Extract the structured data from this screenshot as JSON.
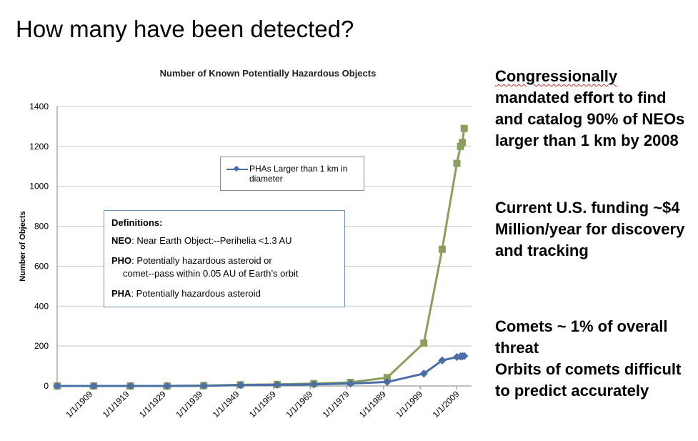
{
  "slide": {
    "title": "How many have been detected?"
  },
  "chart_data": {
    "type": "line",
    "title": "Number of Known Potentially Hazardous Objects",
    "ylabel": "Number of Objects",
    "xlabel": "",
    "ylim": [
      0,
      1400
    ],
    "yticks": [
      "0",
      "200",
      "400",
      "600",
      "800",
      "1000",
      "1200",
      "1400"
    ],
    "xlim": [
      "1900-01-01",
      "2013-01-01"
    ],
    "xticks": [
      "1/1/1909",
      "1/1/1919",
      "1/1/1929",
      "1/1/1939",
      "1/1/1949",
      "1/1/1959",
      "1/1/1969",
      "1/1/1979",
      "1/1/1989",
      "1/1/1999",
      "1/1/2009"
    ],
    "grid": "horizontal",
    "legend_placement": "center",
    "series": [
      {
        "name": "",
        "color": "#8c9e5e",
        "marker": "square",
        "points": [
          {
            "x": "1900-01-01",
            "y": 0
          },
          {
            "x": "1910-01-01",
            "y": 0
          },
          {
            "x": "1920-01-01",
            "y": 0
          },
          {
            "x": "1930-01-01",
            "y": 0
          },
          {
            "x": "1940-01-01",
            "y": 2
          },
          {
            "x": "1950-01-01",
            "y": 6
          },
          {
            "x": "1960-01-01",
            "y": 8
          },
          {
            "x": "1970-01-01",
            "y": 12
          },
          {
            "x": "1980-01-01",
            "y": 18
          },
          {
            "x": "1990-01-01",
            "y": 42
          },
          {
            "x": "2000-01-01",
            "y": 215
          },
          {
            "x": "2005-01-01",
            "y": 685
          },
          {
            "x": "2009-01-01",
            "y": 1115
          },
          {
            "x": "2010-01-01",
            "y": 1200
          },
          {
            "x": "2010-07-01",
            "y": 1220
          },
          {
            "x": "2011-01-01",
            "y": 1290
          }
        ]
      },
      {
        "name": "PHAs Larger than 1 km in diameter",
        "color": "#4a6fa5",
        "marker": "diamond",
        "points": [
          {
            "x": "1900-01-01",
            "y": 0
          },
          {
            "x": "1910-01-01",
            "y": 0
          },
          {
            "x": "1920-01-01",
            "y": 0
          },
          {
            "x": "1930-01-01",
            "y": 0
          },
          {
            "x": "1940-01-01",
            "y": 1
          },
          {
            "x": "1950-01-01",
            "y": 4
          },
          {
            "x": "1960-01-01",
            "y": 6
          },
          {
            "x": "1970-01-01",
            "y": 8
          },
          {
            "x": "1980-01-01",
            "y": 12
          },
          {
            "x": "1990-01-01",
            "y": 20
          },
          {
            "x": "2000-01-01",
            "y": 62
          },
          {
            "x": "2005-01-01",
            "y": 128
          },
          {
            "x": "2009-01-01",
            "y": 145
          },
          {
            "x": "2010-01-01",
            "y": 148
          },
          {
            "x": "2010-07-01",
            "y": 149
          },
          {
            "x": "2011-01-01",
            "y": 150
          }
        ]
      }
    ]
  },
  "legend": {
    "label": "PHAs Larger than 1 km in diameter"
  },
  "definitions": {
    "title": "Definitions:",
    "neo_term": "NEO",
    "neo_text": ": Near Earth Object:--Perihelia <1.3 AU",
    "pho_term": "PHO",
    "pho_text": ": Potentially hazardous asteroid or",
    "pho_text2": "comet--pass within 0.05 AU of Earth’s orbit",
    "pha_term": "PHA",
    "pha_text": ": Potentially hazardous asteroid"
  },
  "right_panel": {
    "p1_word1": "Congressionally",
    "p1_rest": "mandated effort to find and catalog 90% of NEOs larger than 1 km by 2008",
    "p2": "Current U.S. funding ~$4 Million/year for discovery and tracking",
    "p3_line1": "Comets ~ 1%  of overall threat",
    "p3_line2": "Orbits of comets difficult to predict accurately"
  }
}
